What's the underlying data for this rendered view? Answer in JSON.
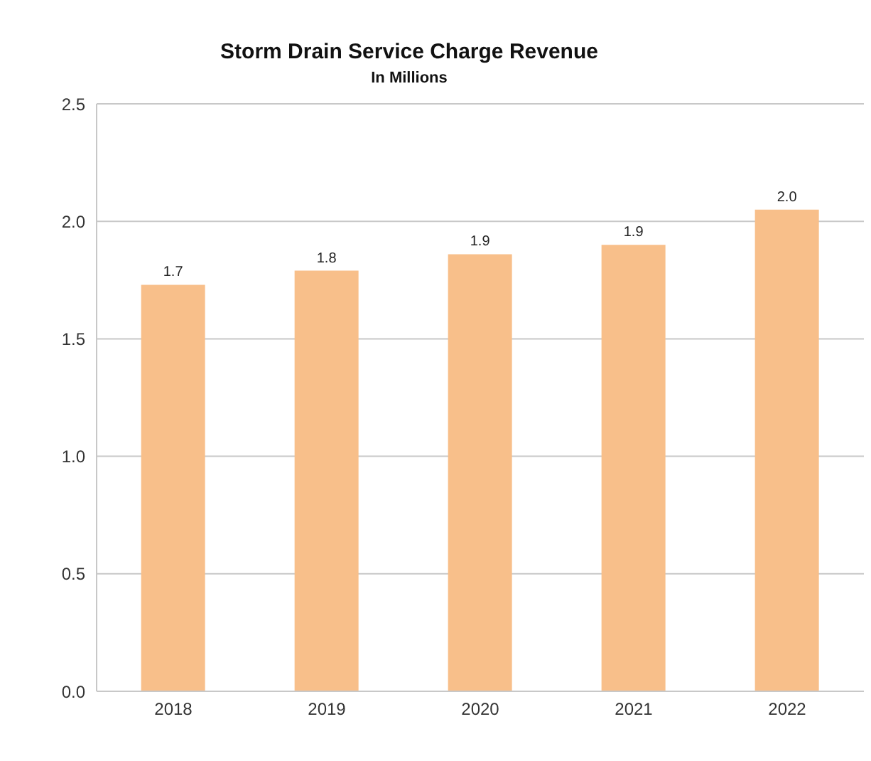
{
  "chart_data": {
    "type": "bar",
    "title": "Storm Drain Service Charge Revenue",
    "subtitle": "In Millions",
    "categories": [
      "2018",
      "2019",
      "2020",
      "2021",
      "2022"
    ],
    "values": [
      1.73,
      1.79,
      1.86,
      1.9,
      2.05
    ],
    "value_labels": [
      "1.7",
      "1.8",
      "1.9",
      "1.9",
      "2.0"
    ],
    "color": "#f8bf8a",
    "ylim": [
      0,
      2.5
    ],
    "yticks": [
      {
        "value": 0,
        "label": "0.0"
      },
      {
        "value": 0.5,
        "label": "0.5"
      },
      {
        "value": 1,
        "label": "1.0"
      },
      {
        "value": 1.5,
        "label": "1.5"
      },
      {
        "value": 2,
        "label": "2.0"
      },
      {
        "value": 2.5,
        "label": "2.5"
      }
    ],
    "grid": "y",
    "legend": false
  }
}
